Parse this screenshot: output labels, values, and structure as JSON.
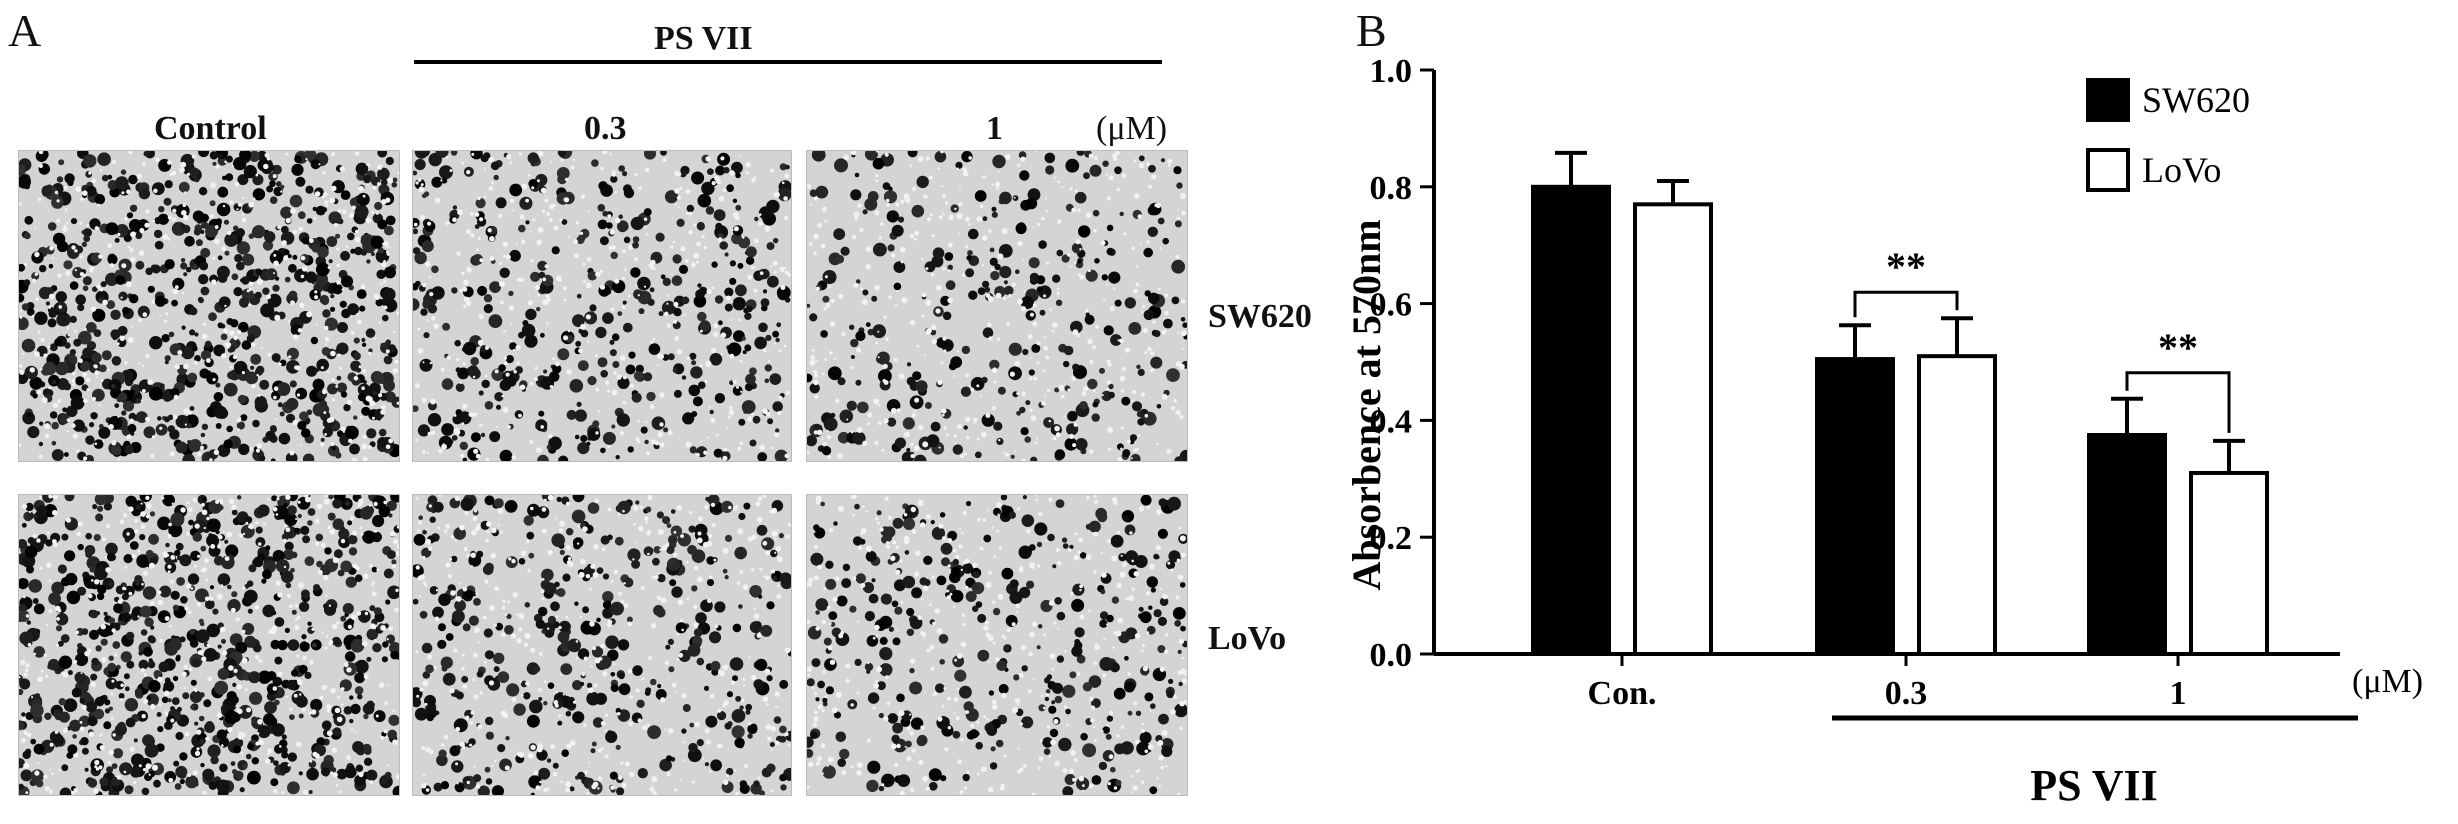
{
  "panel_a": {
    "letter": "A",
    "group_label": "PS VII",
    "columns": [
      "Control",
      "0.3",
      "1"
    ],
    "unit": "(μM)",
    "rows": [
      "SW620",
      "LoVo"
    ],
    "micrographs": [
      {
        "row": "SW620",
        "column": "Control",
        "density": 0.55
      },
      {
        "row": "SW620",
        "column": "0.3",
        "density": 0.3
      },
      {
        "row": "SW620",
        "column": "1",
        "density": 0.22
      },
      {
        "row": "LoVo",
        "column": "Control",
        "density": 0.55
      },
      {
        "row": "LoVo",
        "column": "0.3",
        "density": 0.3
      },
      {
        "row": "LoVo",
        "column": "1",
        "density": 0.24
      }
    ]
  },
  "panel_b": {
    "letter": "B",
    "group_label": "PS VII",
    "x_unit": "(μM)"
  },
  "chart_data": {
    "type": "bar",
    "categories": [
      "Con.",
      "0.3",
      "1"
    ],
    "series": [
      {
        "name": "SW620",
        "color": "#000000",
        "values": [
          0.8,
          0.505,
          0.375
        ],
        "errors": [
          0.058,
          0.058,
          0.062
        ]
      },
      {
        "name": "LoVo",
        "color": "#ffffff",
        "values": [
          0.77,
          0.51,
          0.31
        ],
        "errors": [
          0.04,
          0.065,
          0.055
        ]
      }
    ],
    "ylabel": "Absorbence at 570nm",
    "xlabel": "",
    "ylim": [
      0,
      1.0
    ],
    "yticks": [
      "0.0",
      "0.2",
      "0.4",
      "0.6",
      "0.8",
      "1.0"
    ],
    "legend": {
      "placement": "top-right"
    },
    "annotations": [
      {
        "text": "**",
        "between": [
          "SW620",
          "LoVo"
        ],
        "category": "0.3"
      },
      {
        "text": "**",
        "between": [
          "SW620",
          "LoVo"
        ],
        "category": "1"
      }
    ],
    "grid": false
  }
}
